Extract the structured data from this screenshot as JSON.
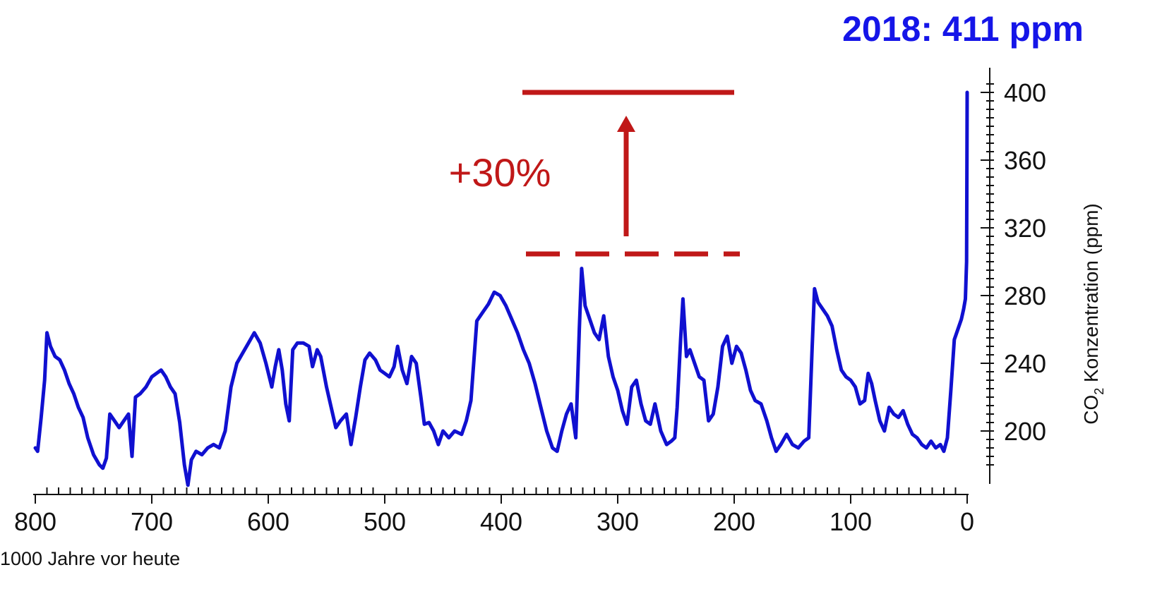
{
  "headline": "2018: 411 ppm",
  "annotation": "+30%",
  "colors": {
    "series": "#1010d0",
    "headline": "#1515e8",
    "annotation": "#c01818",
    "axis": "#111111"
  },
  "chart_data": {
    "type": "line",
    "xlabel": "1000 Jahre vor heute",
    "ylabel_prefix": "CO",
    "ylabel_sub": "2",
    "ylabel_suffix": " Konzentration (ppm)",
    "xlim": [
      800,
      0
    ],
    "ylim": [
      170,
      410
    ],
    "x_ticks": [
      800,
      700,
      600,
      500,
      400,
      300,
      200,
      100,
      0
    ],
    "y_ticks": [
      200,
      240,
      280,
      320,
      360,
      400
    ],
    "reference_lines": {
      "preindustrial_max": {
        "value": 300,
        "x_range": [
          380,
          200
        ],
        "style": "dashed"
      },
      "current": {
        "value": 400,
        "x_range": [
          380,
          200
        ],
        "style": "solid"
      }
    },
    "series": [
      {
        "values": [
          [
            800,
            190
          ],
          [
            798,
            188
          ],
          [
            795,
            208
          ],
          [
            792,
            230
          ],
          [
            790,
            258
          ],
          [
            787,
            250
          ],
          [
            783,
            244
          ],
          [
            779,
            242
          ],
          [
            775,
            236
          ],
          [
            771,
            228
          ],
          [
            767,
            222
          ],
          [
            763,
            214
          ],
          [
            759,
            208
          ],
          [
            755,
            196
          ],
          [
            750,
            186
          ],
          [
            745,
            180
          ],
          [
            742,
            178
          ],
          [
            739,
            184
          ],
          [
            736,
            210
          ],
          [
            732,
            206
          ],
          [
            728,
            202
          ],
          [
            724,
            206
          ],
          [
            720,
            210
          ],
          [
            717,
            185
          ],
          [
            714,
            220
          ],
          [
            710,
            222
          ],
          [
            705,
            226
          ],
          [
            700,
            232
          ],
          [
            696,
            234
          ],
          [
            692,
            236
          ],
          [
            688,
            232
          ],
          [
            684,
            226
          ],
          [
            680,
            222
          ],
          [
            676,
            205
          ],
          [
            672,
            180
          ],
          [
            669,
            168
          ],
          [
            666,
            183
          ],
          [
            662,
            188
          ],
          [
            657,
            186
          ],
          [
            652,
            190
          ],
          [
            647,
            192
          ],
          [
            642,
            190
          ],
          [
            637,
            200
          ],
          [
            632,
            226
          ],
          [
            627,
            240
          ],
          [
            622,
            246
          ],
          [
            617,
            252
          ],
          [
            612,
            258
          ],
          [
            607,
            252
          ],
          [
            602,
            240
          ],
          [
            597,
            226
          ],
          [
            594,
            238
          ],
          [
            591,
            248
          ],
          [
            588,
            236
          ],
          [
            585,
            216
          ],
          [
            582,
            206
          ],
          [
            579,
            248
          ],
          [
            575,
            252
          ],
          [
            570,
            252
          ],
          [
            565,
            250
          ],
          [
            562,
            238
          ],
          [
            558,
            248
          ],
          [
            555,
            244
          ],
          [
            550,
            226
          ],
          [
            546,
            214
          ],
          [
            542,
            202
          ],
          [
            538,
            206
          ],
          [
            533,
            210
          ],
          [
            529,
            192
          ],
          [
            525,
            208
          ],
          [
            521,
            226
          ],
          [
            517,
            242
          ],
          [
            513,
            246
          ],
          [
            508,
            242
          ],
          [
            504,
            236
          ],
          [
            500,
            234
          ],
          [
            496,
            232
          ],
          [
            492,
            238
          ],
          [
            489,
            250
          ],
          [
            485,
            236
          ],
          [
            481,
            228
          ],
          [
            477,
            244
          ],
          [
            473,
            240
          ],
          [
            469,
            220
          ],
          [
            466,
            204
          ],
          [
            462,
            205
          ],
          [
            458,
            200
          ],
          [
            454,
            192
          ],
          [
            450,
            200
          ],
          [
            445,
            196
          ],
          [
            440,
            200
          ],
          [
            434,
            198
          ],
          [
            430,
            206
          ],
          [
            426,
            218
          ],
          [
            421,
            265
          ],
          [
            416,
            270
          ],
          [
            411,
            275
          ],
          [
            406,
            282
          ],
          [
            401,
            280
          ],
          [
            396,
            274
          ],
          [
            391,
            266
          ],
          [
            386,
            258
          ],
          [
            381,
            248
          ],
          [
            376,
            240
          ],
          [
            371,
            228
          ],
          [
            366,
            214
          ],
          [
            361,
            200
          ],
          [
            356,
            190
          ],
          [
            352,
            188
          ],
          [
            348,
            200
          ],
          [
            344,
            210
          ],
          [
            340,
            216
          ],
          [
            336,
            196
          ],
          [
            333,
            260
          ],
          [
            331,
            296
          ],
          [
            328,
            274
          ],
          [
            324,
            266
          ],
          [
            320,
            258
          ],
          [
            316,
            254
          ],
          [
            312,
            268
          ],
          [
            308,
            244
          ],
          [
            304,
            232
          ],
          [
            300,
            224
          ],
          [
            296,
            212
          ],
          [
            292,
            204
          ],
          [
            288,
            226
          ],
          [
            284,
            230
          ],
          [
            280,
            216
          ],
          [
            276,
            206
          ],
          [
            272,
            204
          ],
          [
            268,
            216
          ],
          [
            263,
            200
          ],
          [
            258,
            192
          ],
          [
            254,
            194
          ],
          [
            251,
            196
          ],
          [
            249,
            214
          ],
          [
            246,
            254
          ],
          [
            244,
            278
          ],
          [
            241,
            244
          ],
          [
            238,
            248
          ],
          [
            234,
            240
          ],
          [
            230,
            232
          ],
          [
            226,
            230
          ],
          [
            222,
            206
          ],
          [
            218,
            210
          ],
          [
            214,
            226
          ],
          [
            210,
            250
          ],
          [
            206,
            256
          ],
          [
            202,
            240
          ],
          [
            198,
            250
          ],
          [
            194,
            246
          ],
          [
            190,
            236
          ],
          [
            186,
            224
          ],
          [
            182,
            218
          ],
          [
            177,
            216
          ],
          [
            172,
            206
          ],
          [
            168,
            196
          ],
          [
            164,
            188
          ],
          [
            160,
            192
          ],
          [
            155,
            198
          ],
          [
            150,
            192
          ],
          [
            145,
            190
          ],
          [
            140,
            194
          ],
          [
            136,
            196
          ],
          [
            133,
            250
          ],
          [
            131,
            284
          ],
          [
            128,
            276
          ],
          [
            124,
            272
          ],
          [
            120,
            268
          ],
          [
            116,
            262
          ],
          [
            112,
            248
          ],
          [
            108,
            236
          ],
          [
            104,
            232
          ],
          [
            100,
            230
          ],
          [
            96,
            226
          ],
          [
            92,
            216
          ],
          [
            88,
            218
          ],
          [
            85,
            234
          ],
          [
            82,
            228
          ],
          [
            79,
            218
          ],
          [
            75,
            206
          ],
          [
            71,
            200
          ],
          [
            67,
            214
          ],
          [
            63,
            210
          ],
          [
            59,
            208
          ],
          [
            55,
            212
          ],
          [
            51,
            204
          ],
          [
            47,
            198
          ],
          [
            43,
            196
          ],
          [
            39,
            192
          ],
          [
            35,
            190
          ],
          [
            31,
            194
          ],
          [
            27,
            190
          ],
          [
            23,
            192
          ],
          [
            20,
            188
          ],
          [
            17,
            196
          ],
          [
            14,
            224
          ],
          [
            11,
            254
          ],
          [
            8,
            260
          ],
          [
            5,
            266
          ],
          [
            3,
            272
          ],
          [
            1.5,
            278
          ],
          [
            0.5,
            300
          ],
          [
            0.2,
            360
          ],
          [
            0,
            400
          ]
        ]
      }
    ]
  }
}
